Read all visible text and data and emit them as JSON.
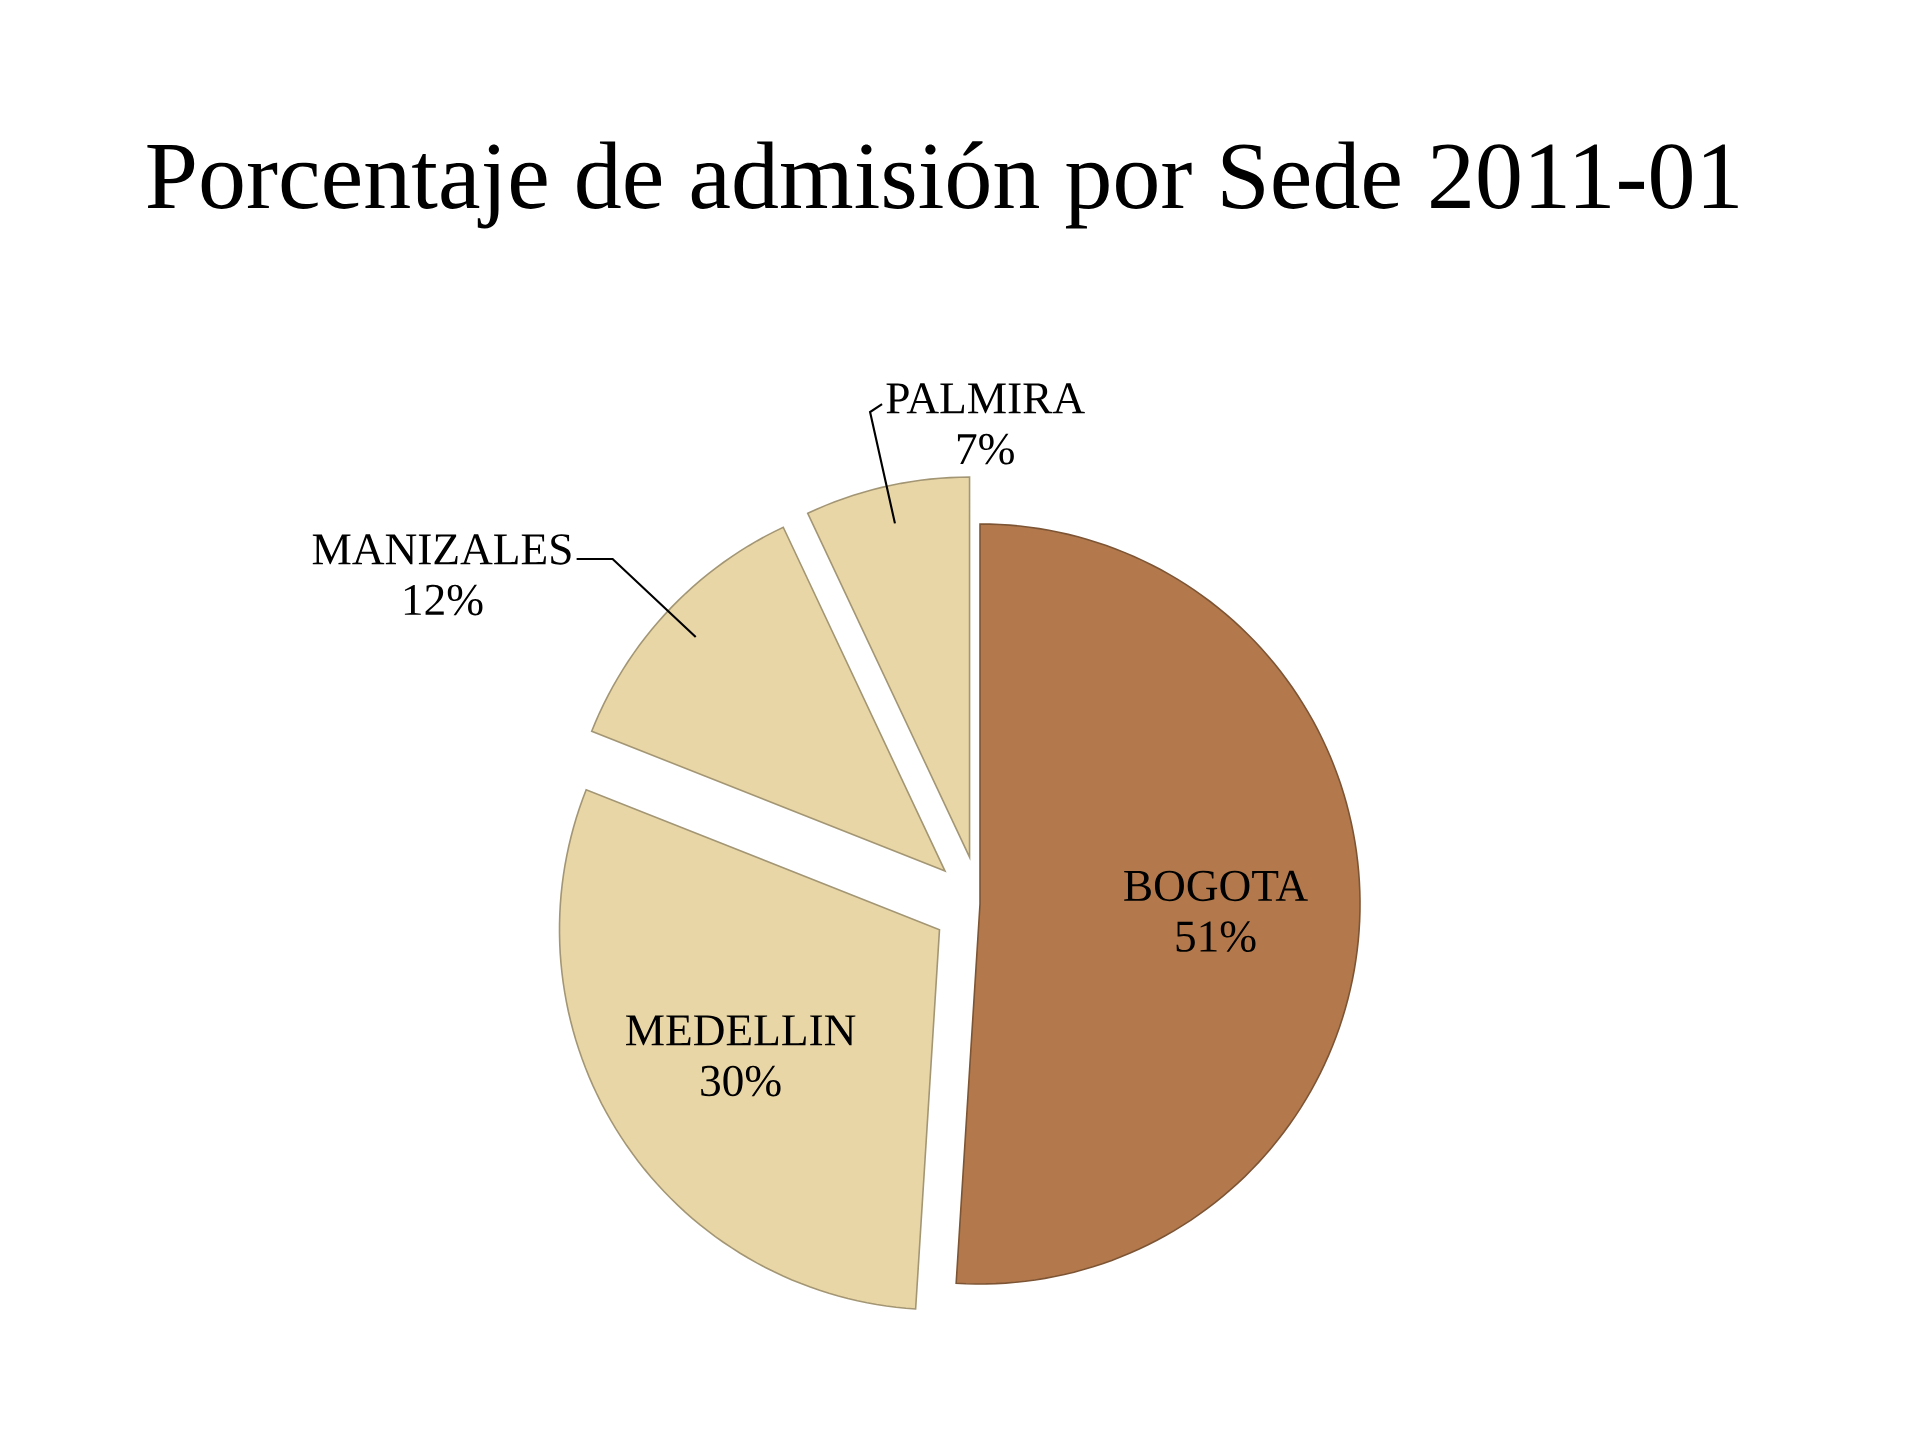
{
  "chart_data": {
    "type": "pie",
    "title": "Porcentaje de admisión por Sede 2011-01",
    "categories": [
      "BOGOTA",
      "MEDELLIN",
      "MANIZALES",
      "PALMIRA"
    ],
    "values": [
      51,
      30,
      12,
      7
    ],
    "colors": [
      "#b3794c",
      "#e9d6a6",
      "#e9d6a6",
      "#e9d6a6"
    ],
    "value_labels": [
      "51%",
      "30%",
      "12%",
      "7%"
    ]
  }
}
